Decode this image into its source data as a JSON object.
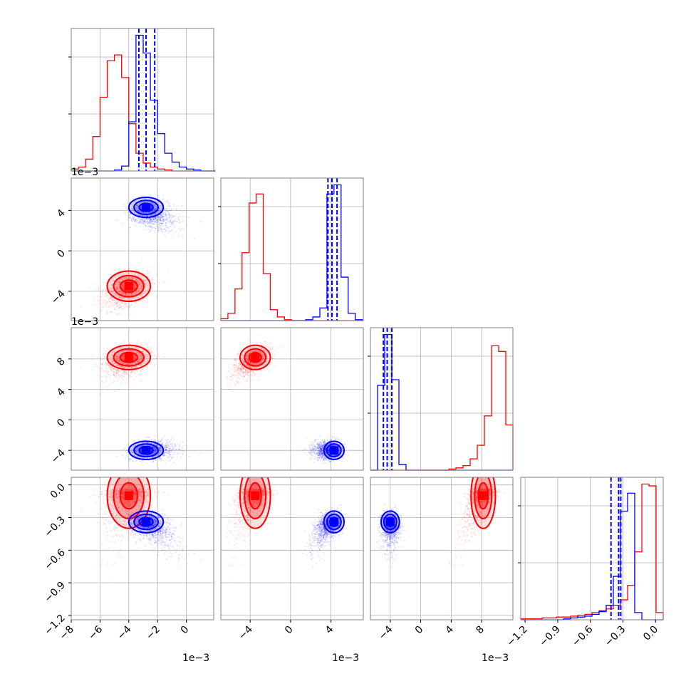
{
  "chart_data": {
    "type": "scatter",
    "title": "",
    "parameters": [
      "",
      "",
      "",
      ""
    ],
    "grid": true,
    "legend": "none",
    "colors": {
      "series_1": "#ff0000",
      "series_2": "#0000ff",
      "quantile_lines": "#0000ff"
    },
    "ranges": [
      [
        -8.0,
        1.9
      ],
      [
        -6.9,
        7.2
      ],
      [
        -6.6,
        12.1
      ],
      [
        -1.24,
        0.07
      ]
    ],
    "ticks": [
      [
        -8,
        -6,
        -4,
        -2,
        0
      ],
      [
        -4,
        0,
        4
      ],
      [
        -4,
        0,
        4,
        8
      ],
      [
        -1.2,
        -0.9,
        -0.6,
        -0.3,
        0.0
      ]
    ],
    "x_tick_labels": [
      [
        "−8",
        "−6",
        "−4",
        "−2",
        "0"
      ],
      [
        "−4",
        "0",
        "4"
      ],
      [
        "−4",
        "0",
        "4",
        "8"
      ],
      [
        "−1.2",
        "−0.9",
        "−0.6",
        "−0.3",
        "0.0"
      ]
    ],
    "y_tick_labels": [
      [],
      [
        "−4",
        "0",
        "4"
      ],
      [
        "−4",
        "0",
        "4",
        "8"
      ],
      [
        "−1.2",
        "−0.9",
        "−0.6",
        "−0.3",
        "0.0"
      ]
    ],
    "offset_labels": {
      "y_row_1": "1e−3",
      "y_row_2": "1e−3",
      "x_col_0": "1e−3",
      "x_col_1": "1e−3",
      "x_col_2": "1e−3"
    },
    "series": [
      {
        "color": "#ff0000",
        "mean": [
          -4.0,
          -3.5,
          8.2,
          -0.1
        ],
        "std": [
          0.75,
          0.75,
          0.8,
          0.15
        ],
        "histograms": {
          "p0": {
            "edges_start": -8.0,
            "bin_width": 0.5,
            "counts": [
              2,
              4,
              12,
              35,
              75,
              112,
              118,
              95,
              48,
              18,
              8,
              4,
              2,
              1,
              0,
              0,
              0,
              0,
              0,
              0
            ]
          },
          "p1": {
            "edges_start": -6.9,
            "bin_width": 0.7,
            "counts": [
              2,
              8,
              35,
              75,
              130,
              140,
              52,
              12,
              4,
              1,
              0,
              0,
              0,
              0,
              0,
              0,
              0,
              0,
              0,
              0
            ]
          },
          "p2": {
            "edges_start": -6.6,
            "bin_width": 0.935,
            "counts": [
              0,
              0,
              0,
              0,
              0,
              0,
              0,
              0,
              0,
              0,
              0,
              1,
              2,
              4,
              10,
              22,
              48,
              110,
              105,
              40
            ]
          },
          "p3": {
            "edges_start": -1.24,
            "bin_width": 0.0655,
            "counts": [
              1,
              1,
              1,
              2,
              2,
              3,
              3,
              4,
              5,
              6,
              8,
              10,
              12,
              16,
              22,
              38,
              75,
              150,
              148,
              8
            ]
          }
        }
      },
      {
        "color": "#0000ff",
        "mean": [
          -2.8,
          4.3,
          -4.0,
          -0.34
        ],
        "std": [
          0.6,
          0.5,
          0.6,
          0.05
        ],
        "quantiles": [
          [
            -3.3,
            -2.8,
            -2.2
          ],
          [
            3.7,
            4.1,
            4.6
          ],
          [
            -4.9,
            -4.4,
            -3.8
          ],
          [
            -0.41,
            -0.34,
            -0.32
          ]
        ],
        "histograms": {
          "p0": {
            "edges_start": -8.0,
            "bin_width": 0.5,
            "counts": [
              0,
              0,
              0,
              0,
              0,
              0,
              1,
              5,
              50,
              138,
              120,
              72,
              38,
              18,
              9,
              4,
              2,
              1,
              0,
              0
            ]
          },
          "p1": {
            "edges_start": -6.9,
            "bin_width": 0.7,
            "counts": [
              0,
              0,
              0,
              0,
              0,
              0,
              0,
              0,
              0,
              0,
              0,
              0,
              1,
              4,
              14,
              140,
              150,
              48,
              8,
              1
            ]
          },
          "p2": {
            "edges_start": -6.6,
            "bin_width": 0.935,
            "counts": [
              0,
              75,
              120,
              80,
              5,
              0,
              0,
              0,
              0,
              0,
              0,
              0,
              0,
              0,
              0,
              0,
              0,
              0,
              0,
              0
            ]
          },
          "p3": {
            "edges_start": -1.24,
            "bin_width": 0.0655,
            "counts": [
              0,
              0,
              0,
              0,
              0,
              0,
              1,
              2,
              3,
              4,
              6,
              9,
              16,
              48,
              120,
              140,
              8,
              0,
              0,
              0
            ]
          }
        }
      }
    ]
  }
}
